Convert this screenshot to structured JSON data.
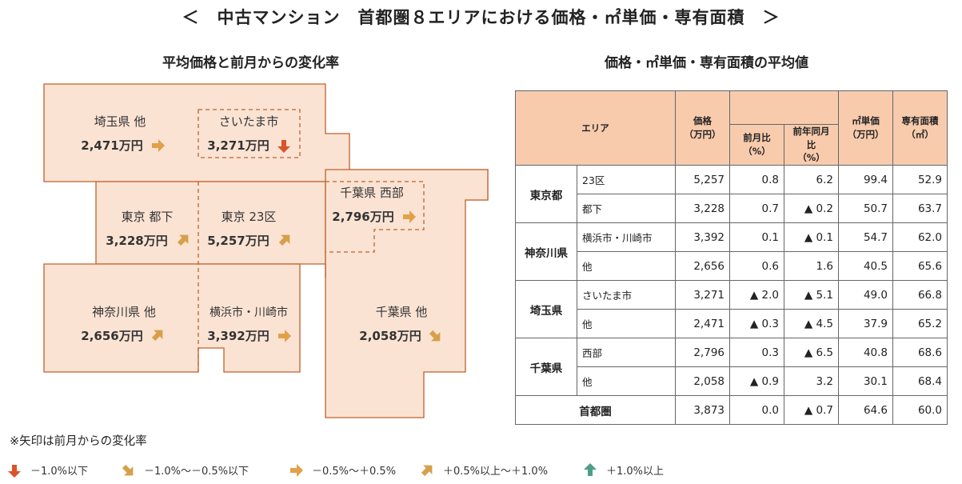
{
  "title": "＜　中古マンション　首都圏８エリアにおける価格・㎡単価・専有面積　＞",
  "map": {
    "subtitle": "平均価格と前月からの変化率",
    "regions": [
      {
        "name": "埼玉県 他",
        "price": "2,471万円",
        "arrow": "flat"
      },
      {
        "name": "さいたま市",
        "price": "3,271万円",
        "arrow": "down-strong"
      },
      {
        "name": "千葉県 西部",
        "price": "2,796万円",
        "arrow": "flat"
      },
      {
        "name": "東京 都下",
        "price": "3,228万円",
        "arrow": "up"
      },
      {
        "name": "東京 23区",
        "price": "5,257万円",
        "arrow": "up"
      },
      {
        "name": "神奈川県 他",
        "price": "2,656万円",
        "arrow": "up"
      },
      {
        "name": "横浜市・川崎市",
        "price": "3,392万円",
        "arrow": "flat"
      },
      {
        "name": "千葉県 他",
        "price": "2,058万円",
        "arrow": "down"
      }
    ]
  },
  "table": {
    "subtitle": "価格・㎡単価・専有面積の平均値",
    "headers": {
      "area": "エリア",
      "price": "価格",
      "price_unit": "（万円）",
      "mom": "前月比",
      "mom_unit": "（%）",
      "yoy": "前年同月比",
      "yoy_unit": "（%）",
      "unit_price": "㎡単価",
      "unit_price_unit": "（万円）",
      "area_size": "専有面積",
      "area_size_unit": "（㎡）"
    },
    "groups": [
      {
        "name": "東京都",
        "rows": [
          {
            "sub": "23区",
            "price": "5,257",
            "mom": "0.8",
            "yoy": "6.2",
            "unit": "99.4",
            "size": "52.9"
          },
          {
            "sub": "都下",
            "price": "3,228",
            "mom": "0.7",
            "yoy": "▲ 0.2",
            "unit": "50.7",
            "size": "63.7"
          }
        ]
      },
      {
        "name": "神奈川県",
        "rows": [
          {
            "sub": "横浜市・川崎市",
            "price": "3,392",
            "mom": "0.1",
            "yoy": "▲ 0.1",
            "unit": "54.7",
            "size": "62.0"
          },
          {
            "sub": "他",
            "price": "2,656",
            "mom": "0.6",
            "yoy": "1.6",
            "unit": "40.5",
            "size": "65.6"
          }
        ]
      },
      {
        "name": "埼玉県",
        "rows": [
          {
            "sub": "さいたま市",
            "price": "3,271",
            "mom": "▲ 2.0",
            "yoy": "▲ 5.1",
            "unit": "49.0",
            "size": "66.8"
          },
          {
            "sub": "他",
            "price": "2,471",
            "mom": "▲ 0.3",
            "yoy": "▲ 4.5",
            "unit": "37.9",
            "size": "65.2"
          }
        ]
      },
      {
        "name": "千葉県",
        "rows": [
          {
            "sub": "西部",
            "price": "2,796",
            "mom": "0.3",
            "yoy": "▲ 6.5",
            "unit": "40.8",
            "size": "68.6"
          },
          {
            "sub": "他",
            "price": "2,058",
            "mom": "▲ 0.9",
            "yoy": "3.2",
            "unit": "30.1",
            "size": "68.4"
          }
        ]
      }
    ],
    "total": {
      "name": "首都圏",
      "price": "3,873",
      "mom": "0.0",
      "yoy": "▲ 0.7",
      "unit": "64.6",
      "size": "60.0"
    }
  },
  "note": "※矢印は前月からの変化率",
  "legend": [
    {
      "arrow": "down-strong",
      "label": "－1.0%以下",
      "color": "#d9532b"
    },
    {
      "arrow": "down",
      "label": "－1.0%～－0.5%以下",
      "color": "#d4a24a"
    },
    {
      "arrow": "flat",
      "label": "－0.5%～＋0.5%",
      "color": "#e0a24a"
    },
    {
      "arrow": "up",
      "label": "＋0.5%以上～＋1.0%",
      "color": "#d4a24a"
    },
    {
      "arrow": "up-strong",
      "label": "＋1.0%以上",
      "color": "#4e9e86"
    }
  ],
  "colors": {
    "region_fill": "#fbe3d4",
    "region_stroke": "#c0602a",
    "header_fill": "#f8cbad"
  }
}
